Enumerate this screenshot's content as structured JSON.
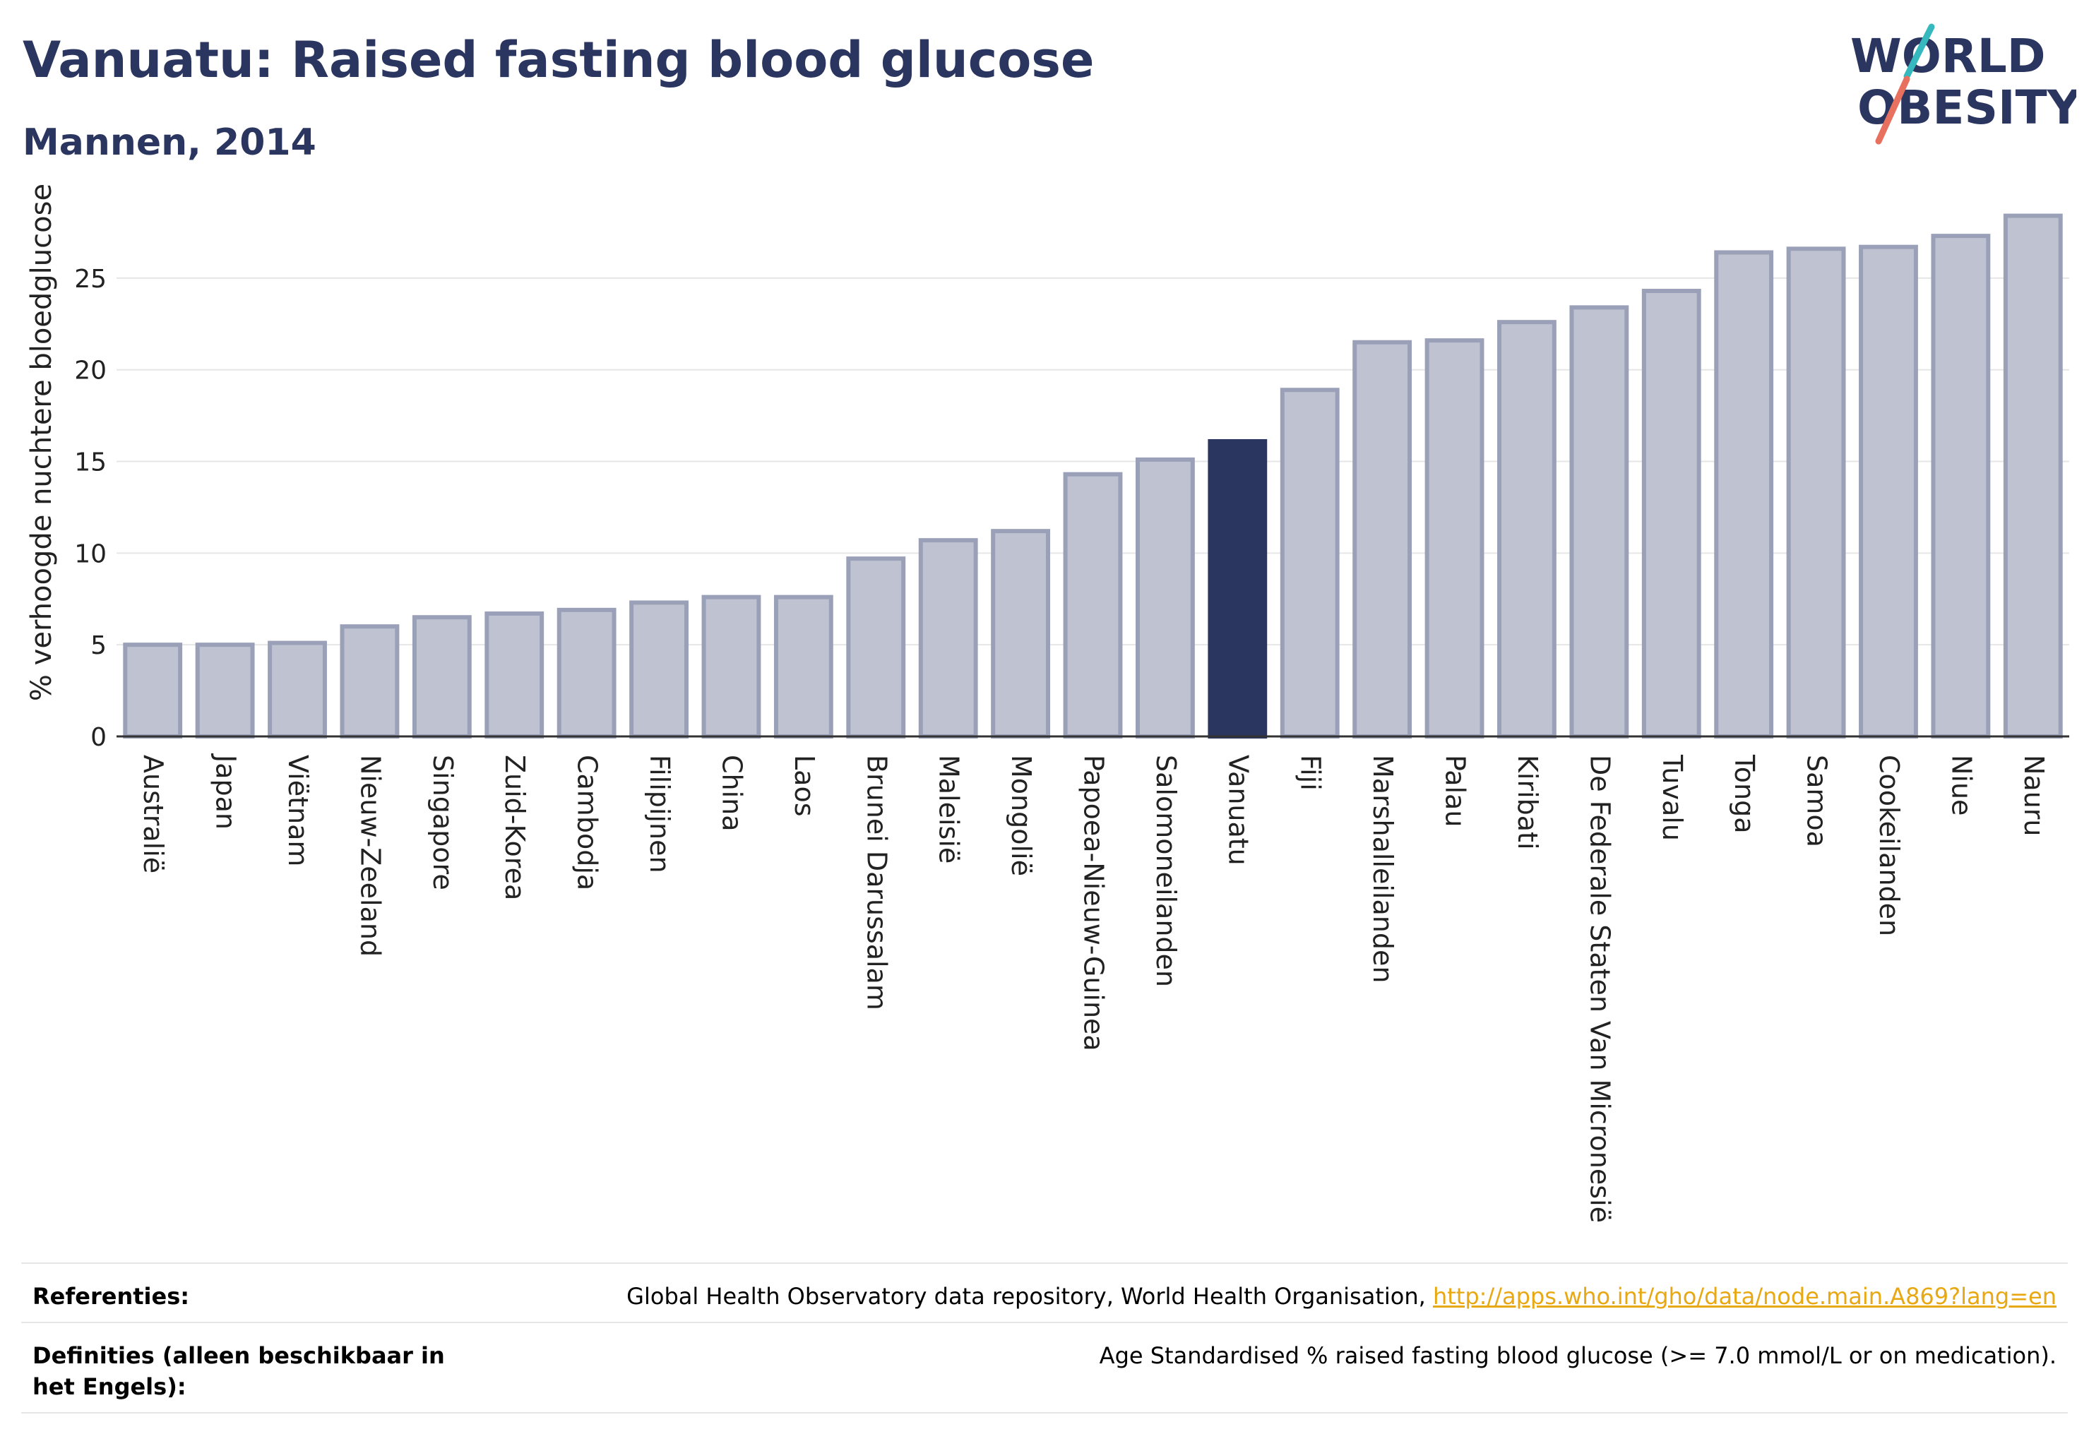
{
  "header": {
    "title": "Vanuatu: Raised fasting blood glucose",
    "subtitle": "Mannen, 2014"
  },
  "logo": {
    "line1": "WORLD",
    "line2": "OBESITY"
  },
  "colors": {
    "bar": "#bfc3d1",
    "bar_edge": "#9aa0b8",
    "highlight": "#2b3660",
    "title": "#2b3660",
    "link": "#e8a812"
  },
  "chart_data": {
    "type": "bar",
    "title": "Vanuatu: Raised fasting blood glucose",
    "subtitle": "Mannen, 2014",
    "xlabel": "",
    "ylabel": "% verhoogde nuchtere bloedglucose",
    "ylim": [
      0,
      29
    ],
    "yticks": [
      0,
      5,
      10,
      15,
      20,
      25
    ],
    "highlight": "Vanuatu",
    "grid": true,
    "categories": [
      "Australië",
      "Japan",
      "Viëtnam",
      "Nieuw-Zeeland",
      "Singapore",
      "Zuid-Korea",
      "Cambodja",
      "Filipijnen",
      "China",
      "Laos",
      "Brunei Darussalam",
      "Maleisië",
      "Mongolië",
      "Papoea-Nieuw-Guinea",
      "Salomoneilanden",
      "Vanuatu",
      "Fiji",
      "Marshalleilanden",
      "Palau",
      "Kiribati",
      "De Federale Staten Van Micronesië",
      "Tuvalu",
      "Tonga",
      "Samoa",
      "Cookeilanden",
      "Niue",
      "Nauru"
    ],
    "values": [
      5.0,
      5.0,
      5.1,
      6.0,
      6.5,
      6.7,
      6.9,
      7.3,
      7.6,
      7.6,
      9.7,
      10.7,
      11.2,
      14.3,
      15.1,
      16.1,
      18.9,
      21.5,
      21.6,
      22.6,
      23.4,
      24.3,
      26.4,
      26.6,
      26.7,
      27.3,
      28.4
    ]
  },
  "footer": {
    "refs_label": "Referenties:",
    "refs_text": "Global Health Observatory data repository, World Health Organisation, ",
    "refs_link": "http://apps.who.int/gho/data/node.main.A869?lang=en",
    "defs_label": "Definities (alleen beschikbaar in het Engels):",
    "defs_text": "Age Standardised % raised fasting blood glucose (>= 7.0 mmol/L or on medication)."
  }
}
